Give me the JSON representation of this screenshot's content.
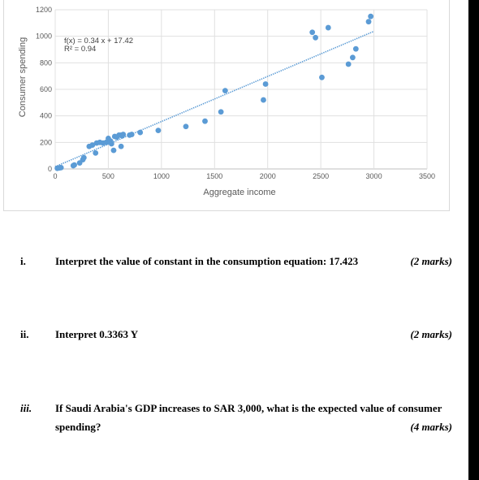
{
  "chart_data": {
    "type": "scatter",
    "xlabel": "Aggregate income",
    "ylabel": "Consumer spending",
    "xlim": [
      0,
      3500
    ],
    "ylim": [
      0,
      1200
    ],
    "xticks": [
      "0",
      "500",
      "1000",
      "1500",
      "2000",
      "2500",
      "3000",
      "3500"
    ],
    "yticks": [
      "0",
      "200",
      "400",
      "600",
      "800",
      "1000",
      "1200"
    ],
    "grid": true,
    "trendline": {
      "type": "linear",
      "slope": 0.34,
      "intercept": 17.42,
      "color": "#5b9bd5",
      "style": "dotted"
    },
    "equation_line1": "f(x) = 0.34 x + 17.42",
    "equation_line2": "R² = 0.94",
    "marker_color": "#5b9bd5",
    "points": [
      [
        20,
        5
      ],
      [
        40,
        8
      ],
      [
        55,
        10
      ],
      [
        170,
        25
      ],
      [
        180,
        30
      ],
      [
        230,
        45
      ],
      [
        260,
        70
      ],
      [
        270,
        85
      ],
      [
        320,
        170
      ],
      [
        350,
        180
      ],
      [
        380,
        120
      ],
      [
        390,
        195
      ],
      [
        420,
        200
      ],
      [
        450,
        195
      ],
      [
        480,
        200
      ],
      [
        500,
        230
      ],
      [
        520,
        210
      ],
      [
        530,
        190
      ],
      [
        550,
        140
      ],
      [
        560,
        245
      ],
      [
        580,
        240
      ],
      [
        600,
        255
      ],
      [
        620,
        255
      ],
      [
        630,
        250
      ],
      [
        640,
        260
      ],
      [
        620,
        170
      ],
      [
        700,
        255
      ],
      [
        720,
        260
      ],
      [
        800,
        275
      ],
      [
        970,
        290
      ],
      [
        1230,
        320
      ],
      [
        1410,
        360
      ],
      [
        1560,
        430
      ],
      [
        1600,
        590
      ],
      [
        1960,
        520
      ],
      [
        1980,
        640
      ],
      [
        2420,
        1030
      ],
      [
        2450,
        990
      ],
      [
        2510,
        690
      ],
      [
        2570,
        1065
      ],
      [
        2760,
        790
      ],
      [
        2800,
        840
      ],
      [
        2830,
        905
      ],
      [
        2950,
        1110
      ],
      [
        2970,
        1150
      ]
    ]
  },
  "questions": [
    {
      "num": "i.",
      "text": "Interpret the value of constant in the consumption equation: 17.423",
      "marks": "(2 marks)"
    },
    {
      "num": "ii.",
      "text": "Interpret 0.3363 Y",
      "marks": "(2 marks)"
    },
    {
      "num": "iii.",
      "text": "If Saudi Arabia's GDP increases to SAR 3,000, what is the expected value of consumer",
      "text2": "spending?",
      "marks": "(4 marks)"
    }
  ]
}
